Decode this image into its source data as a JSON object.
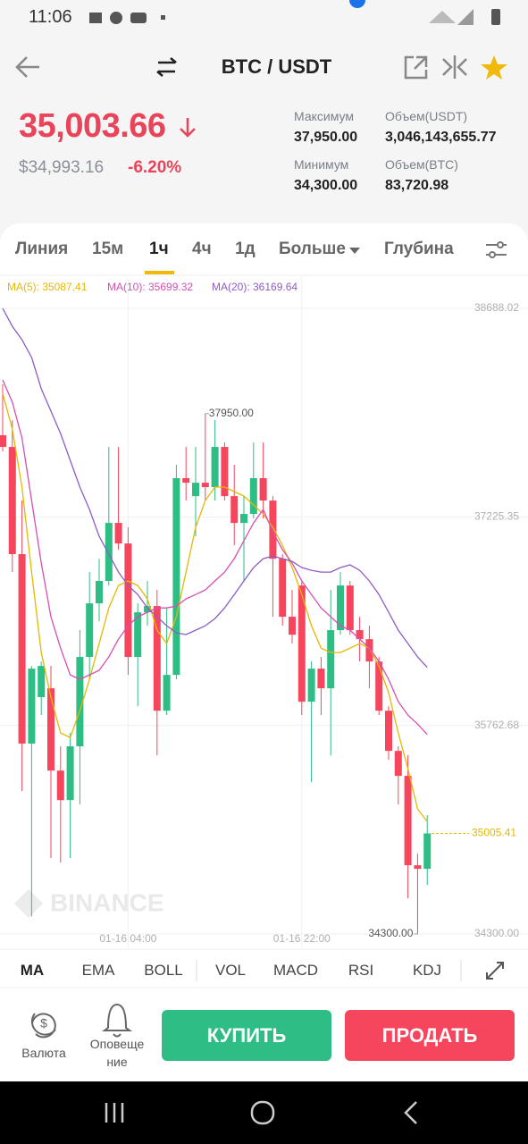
{
  "status_bar": {
    "time": "11:06"
  },
  "header": {
    "pair": "BTC / USDT"
  },
  "price": {
    "last": "35,003.66",
    "usd": "$34,993.16",
    "change": "-6.20%"
  },
  "stats": [
    {
      "label": "Максимум",
      "value": "37,950.00"
    },
    {
      "label": "Объем(USDT)",
      "value": "3,046,143,655.77"
    },
    {
      "label": "Минимум",
      "value": "34,300.00"
    },
    {
      "label": "Объем(BTC)",
      "value": "83,720.98"
    }
  ],
  "tabs": [
    "Линия",
    "15м",
    "1ч",
    "4ч",
    "1д",
    "Больше",
    "Глубина"
  ],
  "chart_data": {
    "type": "candlestick",
    "categories": [
      null,
      null,
      null,
      null,
      null,
      null,
      null,
      null,
      null,
      null,
      null,
      null,
      null,
      "01-16 04:00",
      null,
      null,
      null,
      null,
      null,
      null,
      null,
      null,
      null,
      null,
      null,
      null,
      null,
      null,
      null,
      null,
      null,
      "01-16 22:00",
      null,
      null,
      null,
      null,
      null,
      null,
      null,
      null,
      null,
      null,
      null,
      null,
      null
    ],
    "open": [
      37798,
      37716,
      36964,
      35635,
      35961,
      36023,
      35446,
      35239,
      35616,
      36243,
      36619,
      36776,
      37183,
      37039,
      36243,
      36556,
      36600,
      35866,
      36117,
      37497,
      37371,
      37465,
      37434,
      37716,
      37371,
      37183,
      37246,
      37497,
      37340,
      36932,
      36525,
      36744,
      35929,
      36161,
      36023,
      36431,
      36744,
      36431,
      36368,
      36211,
      35866,
      35584,
      35409,
      34782,
      34757
    ],
    "high": [
      38155,
      37904,
      37340,
      36180,
      36211,
      36180,
      35616,
      35710,
      36431,
      36838,
      36932,
      37716,
      37716,
      37152,
      36619,
      36776,
      36713,
      36588,
      37591,
      37716,
      37716,
      37950,
      37904,
      37747,
      37591,
      37371,
      37747,
      37747,
      37371,
      36964,
      36713,
      36776,
      36211,
      36243,
      36713,
      36838,
      36776,
      36525,
      36462,
      36243,
      35898,
      35616,
      35553,
      34863,
      35133
    ],
    "low": [
      37685,
      36838,
      35302,
      34424,
      35835,
      34832,
      34801,
      34832,
      35208,
      36086,
      36493,
      36744,
      36995,
      36117,
      35898,
      36462,
      35553,
      35835,
      36086,
      37340,
      37089,
      37340,
      37340,
      37340,
      37026,
      36776,
      37215,
      37215,
      36525,
      36462,
      36337,
      35835,
      35365,
      35835,
      35553,
      36399,
      36399,
      36211,
      36023,
      35835,
      35522,
      35208,
      34550,
      34300,
      34644
    ],
    "close": [
      37716,
      36964,
      35635,
      36161,
      36180,
      35446,
      35239,
      35616,
      36243,
      36619,
      36776,
      37183,
      37039,
      36243,
      36556,
      36600,
      35866,
      36117,
      37497,
      37465,
      37465,
      37434,
      37716,
      37371,
      37183,
      37246,
      37497,
      37340,
      36932,
      36525,
      36399,
      35929,
      36161,
      36023,
      36431,
      36744,
      36431,
      36368,
      36211,
      35866,
      35584,
      35409,
      34782,
      34757,
      35005.41
    ],
    "up_color": "#2ebd85",
    "down_color": "#f6465d",
    "series": [
      {
        "name": "MA(5): 35087.41",
        "color": "#e5b800",
        "values": [
          38092,
          37841,
          37434,
          36838,
          36274,
          35960,
          35710,
          35678,
          35866,
          36086,
          36337,
          36587,
          36744,
          36776,
          36744,
          36650,
          36431,
          36337,
          36525,
          36838,
          37152,
          37340,
          37434,
          37434,
          37403,
          37371,
          37309,
          37246,
          37152,
          37026,
          36870,
          36681,
          36462,
          36305,
          36274,
          36274,
          36305,
          36337,
          36305,
          36180,
          35992,
          35710,
          35459,
          35177,
          35087.41
        ]
      },
      {
        "name": "MA(10): 35699.32",
        "color": "#d64fb4",
        "values": [
          38186,
          38030,
          37779,
          37340,
          36901,
          36525,
          36305,
          36117,
          36086,
          36117,
          36149,
          36243,
          36368,
          36462,
          36525,
          36556,
          36587,
          36587,
          36600,
          36650,
          36681,
          36713,
          36776,
          36838,
          36932,
          37058,
          37183,
          37277,
          37120,
          36995,
          36901,
          36776,
          36681,
          36587,
          36525,
          36462,
          36431,
          36368,
          36305,
          36211,
          36086,
          35929,
          35835,
          35772,
          35699.32
        ]
      },
      {
        "name": "MA(20): 36169.64",
        "color": "#8e5cc4",
        "values": [
          38688,
          38562,
          38468,
          38343,
          38124,
          37967,
          37810,
          37622,
          37434,
          37277,
          37089,
          36964,
          36838,
          36744,
          36681,
          36587,
          36525,
          36462,
          36412,
          36400,
          36431,
          36462,
          36512,
          36587,
          36681,
          36776,
          36870,
          36932,
          36951,
          36932,
          36913,
          36870,
          36851,
          36838,
          36838,
          36870,
          36889,
          36851,
          36776,
          36681,
          36556,
          36431,
          36337,
          36243,
          36169.64
        ]
      }
    ],
    "ylim": [
      34300,
      38688.02
    ],
    "yticks": [
      {
        "value": 34300,
        "label": "34300.00"
      },
      35762.68,
      37225.35,
      38688.02
    ],
    "grid": true,
    "last_price": 35005.41,
    "high_label": {
      "value": 37950,
      "label": "37950.00"
    },
    "low_label": {
      "value": 34300,
      "label": "34300.00"
    },
    "watermark": "BINANCE"
  },
  "indicators": [
    "MA",
    "EMA",
    "BOLL",
    "VOL",
    "MACD",
    "RSI",
    "KDJ"
  ],
  "actions": {
    "currency": "Валюта",
    "alerts": [
      "Оповеще",
      "ние"
    ],
    "buy": "КУПИТЬ",
    "sell": "ПРОДАТЬ"
  }
}
